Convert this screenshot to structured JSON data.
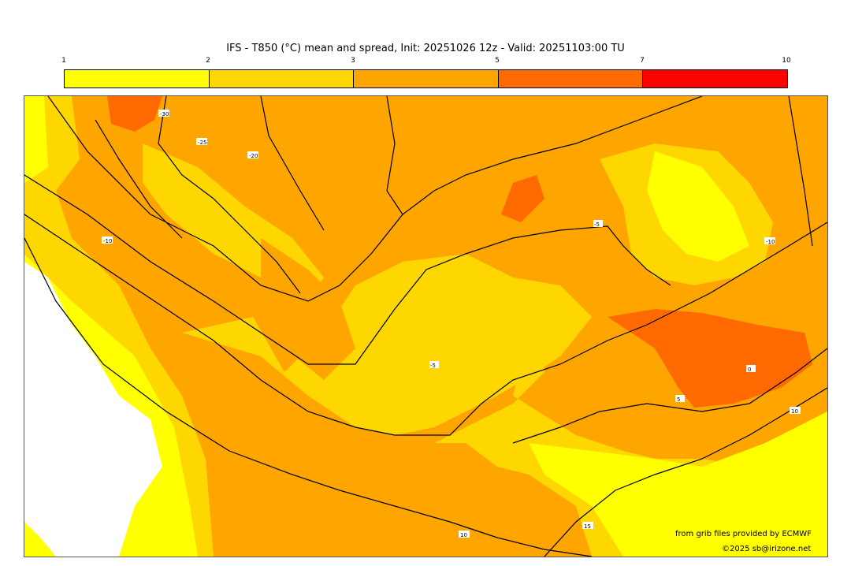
{
  "title": "IFS - T850 (°C) mean and spread, Init: 20251026 12z - Valid: 20251103:00 TU",
  "colorbar": {
    "ticks": [
      "1",
      "2",
      "3",
      "5",
      "7",
      "10"
    ],
    "colors": [
      "#ffff00",
      "#ffd700",
      "#ffa500",
      "#ff6a00",
      "#ff0000"
    ]
  },
  "contour_labels": [
    "-30",
    "-25",
    "-20",
    "-10",
    "-5",
    "-5",
    "0",
    "5",
    "10",
    "10",
    "15",
    "-10"
  ],
  "credits": {
    "source": "from grib files provided by ECMWF",
    "copyright": "©2025 sb@irizone.net"
  }
}
